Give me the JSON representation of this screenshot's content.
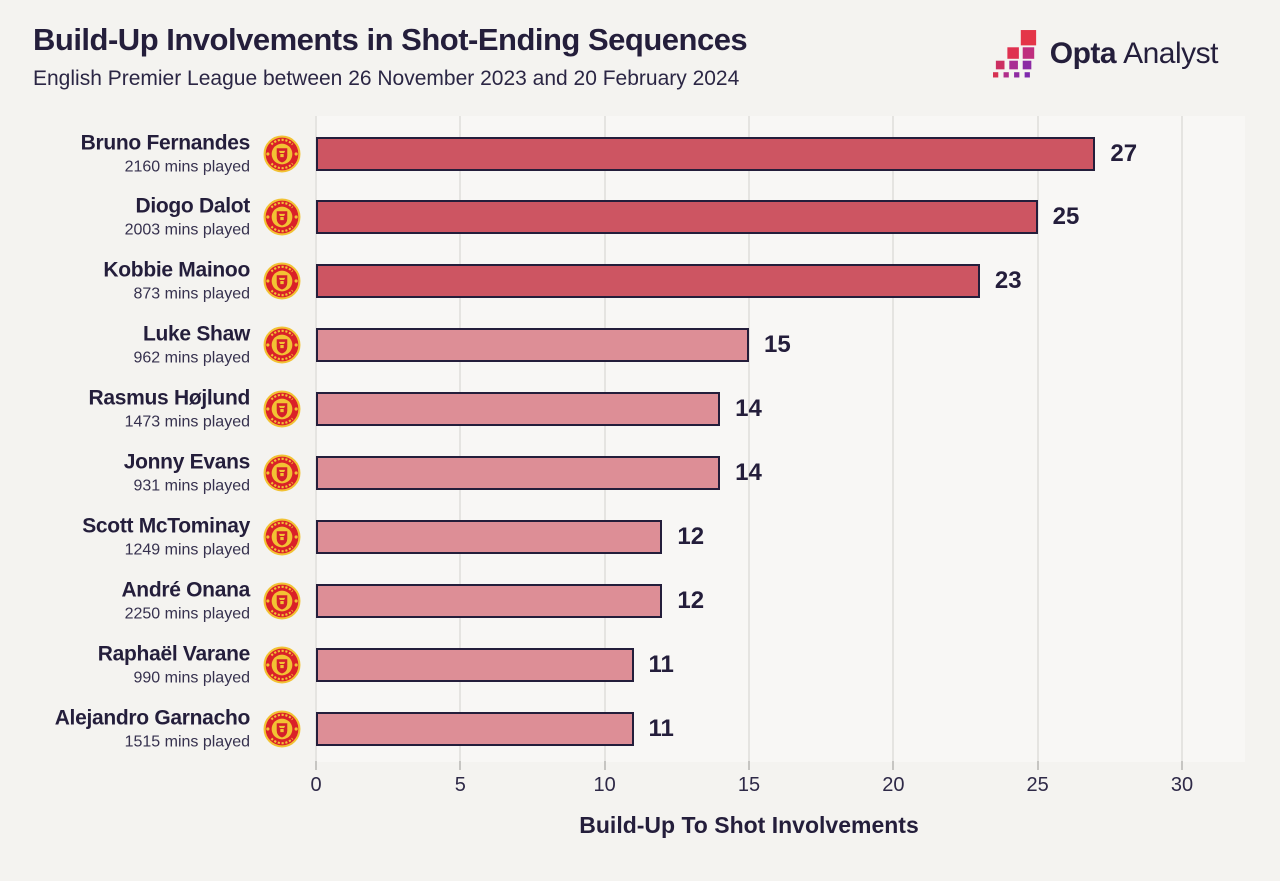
{
  "header": {
    "title": "Build-Up Involvements in Shot-Ending Sequences",
    "subtitle": "English Premier League between 26 November 2023 and 20 February 2024"
  },
  "logo": {
    "brand_bold": "Opta",
    "brand_light": "Analyst",
    "mark_colors": [
      "#e43548",
      "#df3150",
      "#bf2e7e",
      "#cc2f62",
      "#a92c93",
      "#8c2aa4",
      "#d63152",
      "#b02d8a",
      "#8e2aa2",
      "#7e29ad"
    ]
  },
  "chart_data": {
    "type": "bar",
    "orientation": "horizontal",
    "title": "Build-Up Involvements in Shot-Ending Sequences",
    "subtitle": "English Premier League between 26 November 2023 and 20 February 2024",
    "xlabel": "Build-Up To Shot Involvements",
    "ylabel": "",
    "xlim": [
      0,
      30
    ],
    "xticks": [
      0,
      5,
      10,
      15,
      20,
      25,
      30
    ],
    "grid": true,
    "legend": "none",
    "club_icon": "manchester-united-crest",
    "colors": {
      "bar_highlight": "#cd5562",
      "bar_default": "#dd8e96",
      "bar_border": "#241e3b",
      "background": "#f4f3f0",
      "plot_background": "#f8f7f5",
      "gridline": "#e5e4e1",
      "text": "#241e3b"
    },
    "players": [
      {
        "name": "Bruno Fernandes",
        "mins": "2160 mins played",
        "value": 27,
        "highlight": true
      },
      {
        "name": "Diogo Dalot",
        "mins": "2003 mins played",
        "value": 25,
        "highlight": true
      },
      {
        "name": "Kobbie Mainoo",
        "mins": "873 mins played",
        "value": 23,
        "highlight": true
      },
      {
        "name": "Luke Shaw",
        "mins": "962 mins played",
        "value": 15,
        "highlight": false
      },
      {
        "name": "Rasmus Højlund",
        "mins": "1473 mins played",
        "value": 14,
        "highlight": false
      },
      {
        "name": "Jonny Evans",
        "mins": "931 mins played",
        "value": 14,
        "highlight": false
      },
      {
        "name": "Scott McTominay",
        "mins": "1249 mins played",
        "value": 12,
        "highlight": false
      },
      {
        "name": "André Onana",
        "mins": "2250 mins played",
        "value": 12,
        "highlight": false
      },
      {
        "name": "Raphaël Varane",
        "mins": "990 mins played",
        "value": 11,
        "highlight": false
      },
      {
        "name": "Alejandro Garnacho",
        "mins": "1515 mins played",
        "value": 11,
        "highlight": false
      }
    ]
  }
}
